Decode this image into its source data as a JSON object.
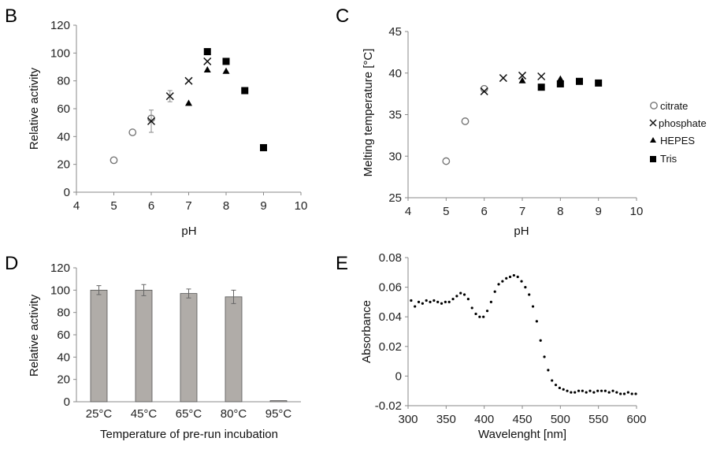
{
  "colors": {
    "bar_fill": "#b0aca8",
    "marker": "#000000",
    "axis": "#8a8a8a"
  },
  "legend": [
    {
      "name": "citrate",
      "marker": "open-circle"
    },
    {
      "name": "phosphate",
      "marker": "cross"
    },
    {
      "name": "HEPES",
      "marker": "triangle"
    },
    {
      "name": "Tris",
      "marker": "square"
    }
  ],
  "chart_data": [
    {
      "panel": "B",
      "type": "scatter",
      "xlabel": "pH",
      "ylabel": "Relative activity",
      "xlim": [
        4,
        10
      ],
      "ylim": [
        0,
        120
      ],
      "xticks": [
        4,
        5,
        6,
        7,
        8,
        9,
        10
      ],
      "yticks": [
        0,
        20,
        40,
        60,
        80,
        100,
        120
      ],
      "series": [
        {
          "name": "citrate",
          "marker": "open-circle",
          "points": [
            [
              5,
              23
            ],
            [
              5.5,
              43
            ],
            [
              6,
              53
            ]
          ],
          "errors": [
            0,
            0,
            0
          ]
        },
        {
          "name": "phosphate",
          "marker": "cross",
          "points": [
            [
              6,
              51
            ],
            [
              6.5,
              69
            ],
            [
              7,
              80
            ],
            [
              7.5,
              94
            ]
          ],
          "errors": [
            8,
            4,
            0,
            0
          ]
        },
        {
          "name": "HEPES",
          "marker": "triangle",
          "points": [
            [
              7,
              64
            ],
            [
              7.5,
              88
            ],
            [
              8,
              87
            ]
          ],
          "errors": [
            0,
            0,
            0
          ]
        },
        {
          "name": "Tris",
          "marker": "square",
          "points": [
            [
              7.5,
              101
            ],
            [
              8,
              94
            ],
            [
              8.5,
              73
            ],
            [
              9,
              32
            ]
          ],
          "errors": [
            0,
            0,
            0,
            0
          ]
        }
      ]
    },
    {
      "panel": "C",
      "type": "scatter",
      "xlabel": "pH",
      "ylabel": "Melting temperature [°C]",
      "xlim": [
        4,
        10
      ],
      "ylim": [
        25,
        45
      ],
      "xticks": [
        4,
        5,
        6,
        7,
        8,
        9,
        10
      ],
      "yticks": [
        25,
        30,
        35,
        40,
        45
      ],
      "legend_position": "right",
      "series": [
        {
          "name": "citrate",
          "marker": "open-circle",
          "points": [
            [
              5,
              29.4
            ],
            [
              5.5,
              34.2
            ],
            [
              6,
              38.1
            ]
          ]
        },
        {
          "name": "phosphate",
          "marker": "cross",
          "points": [
            [
              6,
              37.8
            ],
            [
              6.5,
              39.4
            ],
            [
              7,
              39.7
            ],
            [
              7.5,
              39.6
            ]
          ]
        },
        {
          "name": "HEPES",
          "marker": "triangle",
          "points": [
            [
              7,
              39.1
            ],
            [
              8,
              39.3
            ]
          ]
        },
        {
          "name": "Tris",
          "marker": "square",
          "points": [
            [
              7.5,
              38.3
            ],
            [
              8,
              38.7
            ],
            [
              8.5,
              39.0
            ],
            [
              9,
              38.8
            ]
          ]
        }
      ]
    },
    {
      "panel": "D",
      "type": "bar",
      "xlabel": "Temperature of pre-run incubation",
      "ylabel": "Relative activity",
      "ylim": [
        0,
        120
      ],
      "yticks": [
        0,
        20,
        40,
        60,
        80,
        100,
        120
      ],
      "categories": [
        "25°C",
        "45°C",
        "65°C",
        "80°C",
        "95°C"
      ],
      "values": [
        100,
        100,
        97,
        94,
        1
      ],
      "errors": [
        4,
        5,
        4,
        6,
        0
      ]
    },
    {
      "panel": "E",
      "type": "scatter",
      "xlabel": "Wavelenght [nm]",
      "ylabel": "Absorbance",
      "xlim": [
        300,
        600
      ],
      "ylim": [
        -0.02,
        0.08
      ],
      "xticks": [
        300,
        350,
        400,
        450,
        500,
        550,
        600
      ],
      "yticks": [
        -0.02,
        0,
        0.02,
        0.04,
        0.06,
        0.08
      ],
      "ytick_labels": [
        "-0.02",
        "0",
        "0.02",
        "0.04",
        "0.06",
        "0.08"
      ],
      "x": [
        304,
        309,
        314,
        319,
        324,
        329,
        334,
        339,
        344,
        349,
        354,
        359,
        364,
        369,
        374,
        379,
        384,
        389,
        394,
        399,
        404,
        409,
        414,
        419,
        424,
        429,
        434,
        439,
        444,
        449,
        454,
        459,
        464,
        469,
        474,
        479,
        484,
        489,
        494,
        499,
        504,
        509,
        514,
        519,
        524,
        529,
        534,
        539,
        544,
        549,
        554,
        559,
        564,
        569,
        574,
        579,
        584,
        589,
        594,
        599
      ],
      "y": [
        0.051,
        0.047,
        0.05,
        0.049,
        0.051,
        0.05,
        0.051,
        0.05,
        0.049,
        0.05,
        0.05,
        0.052,
        0.054,
        0.056,
        0.055,
        0.052,
        0.046,
        0.042,
        0.04,
        0.04,
        0.044,
        0.05,
        0.057,
        0.062,
        0.064,
        0.066,
        0.067,
        0.068,
        0.067,
        0.064,
        0.06,
        0.055,
        0.047,
        0.037,
        0.024,
        0.013,
        0.004,
        -0.003,
        -0.006,
        -0.008,
        -0.009,
        -0.01,
        -0.011,
        -0.011,
        -0.01,
        -0.01,
        -0.011,
        -0.01,
        -0.011,
        -0.01,
        -0.01,
        -0.01,
        -0.011,
        -0.01,
        -0.011,
        -0.012,
        -0.012,
        -0.011,
        -0.012,
        -0.012
      ]
    }
  ]
}
